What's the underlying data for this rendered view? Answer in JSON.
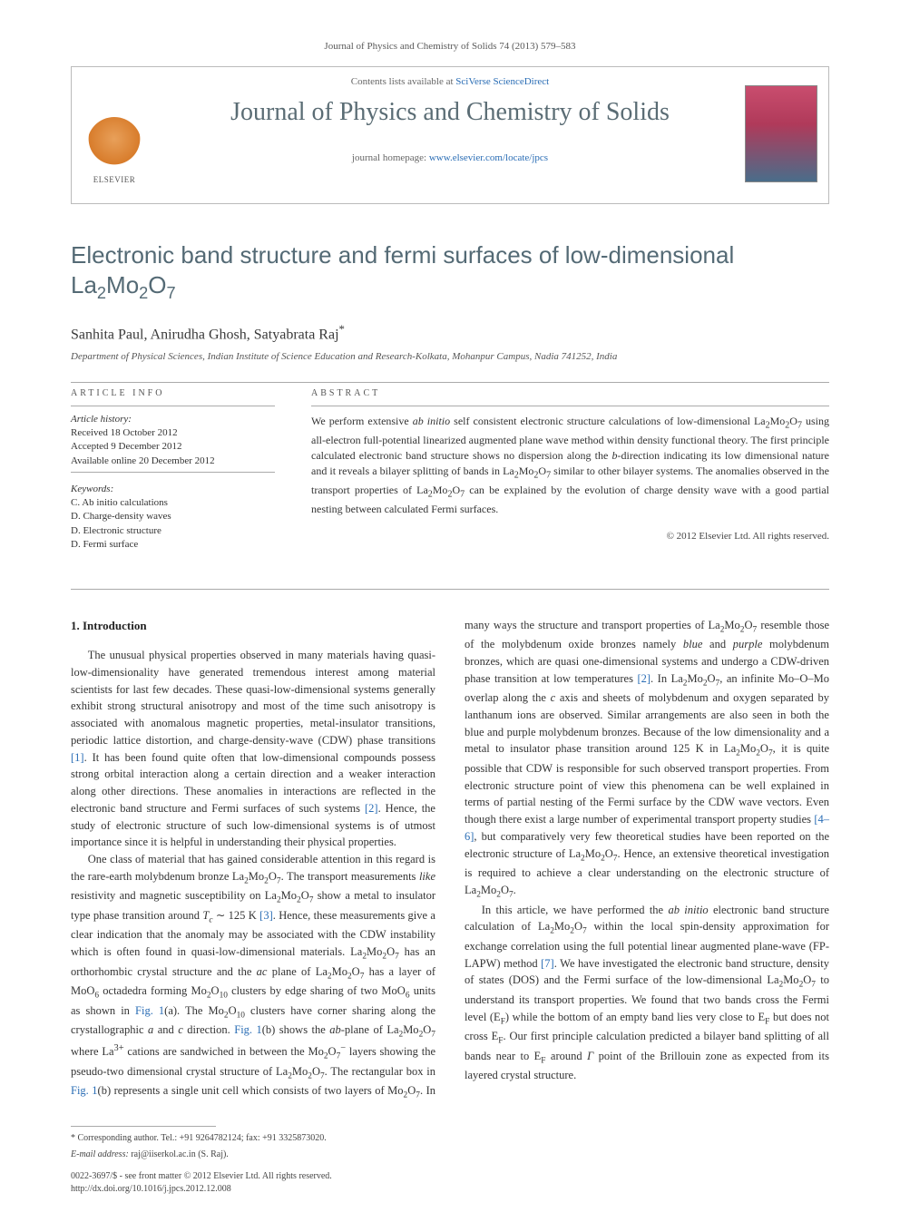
{
  "citation": "Journal of Physics and Chemistry of Solids 74 (2013) 579–583",
  "header": {
    "contents_prefix": "Contents lists available at ",
    "contents_link": "SciVerse ScienceDirect",
    "journal_title": "Journal of Physics and Chemistry of Solids",
    "homepage_prefix": "journal homepage: ",
    "homepage_link": "www.elsevier.com/locate/jpcs",
    "publisher_logo_text": "ELSEVIER"
  },
  "article": {
    "title_html": "Electronic band structure and fermi surfaces of low-dimensional La<sub>2</sub>Mo<sub>2</sub>O<sub>7</sub>",
    "authors": "Sanhita Paul, Anirudha Ghosh, Satyabrata Raj",
    "corr_mark": "*",
    "affiliation": "Department of Physical Sciences, Indian Institute of Science Education and Research-Kolkata, Mohanpur Campus, Nadia 741252, India"
  },
  "info": {
    "section_label": "ARTICLE INFO",
    "history_label": "Article history:",
    "history": [
      "Received 18 October 2012",
      "Accepted 9 December 2012",
      "Available online 20 December 2012"
    ],
    "keywords_label": "Keywords:",
    "keywords": [
      "C. Ab initio calculations",
      "D. Charge-density waves",
      "D. Electronic structure",
      "D. Fermi surface"
    ]
  },
  "abstract": {
    "section_label": "ABSTRACT",
    "text_html": "We perform extensive <i>ab initio</i> self consistent electronic structure calculations of low-dimensional La<sub>2</sub>Mo<sub>2</sub>O<sub>7</sub> using all-electron full-potential linearized augmented plane wave method within density functional theory. The first principle calculated electronic band structure shows no dispersion along the <i>b</i>-direction indicating its low dimensional nature and it reveals a bilayer splitting of bands in La<sub>2</sub>Mo<sub>2</sub>O<sub>7</sub> similar to other bilayer systems. The anomalies observed in the transport properties of La<sub>2</sub>Mo<sub>2</sub>O<sub>7</sub> can be explained by the evolution of charge density wave with a good partial nesting between calculated Fermi surfaces.",
    "copyright": "© 2012 Elsevier Ltd. All rights reserved."
  },
  "body": {
    "heading": "1.  Introduction",
    "para1_html": "The unusual physical properties observed in many materials having quasi-low-dimensionality have generated tremendous interest among material scientists for last few decades. These quasi-low-dimensional systems generally exhibit strong structural anisotropy and most of the time such anisotropy is associated with anomalous magnetic properties, metal-insulator transitions, periodic lattice distortion, and charge-density-wave (CDW) phase transitions <span class=\"ref\">[1]</span>. It has been found quite often that low-dimensional compounds possess strong orbital interaction along a certain direction and a weaker interaction along other directions. These anomalies in interactions are reflected in the electronic band structure and Fermi surfaces of such systems <span class=\"ref\">[2]</span>. Hence, the study of electronic structure of such low-dimensional systems is of utmost importance since it is helpful in understanding their physical properties.",
    "para2_html": "One class of material that has gained considerable attention in this regard is the rare-earth molybdenum bronze La<sub>2</sub>Mo<sub>2</sub>O<sub>7</sub>. The transport measurements <i>like</i> resistivity and magnetic susceptibility on La<sub>2</sub>Mo<sub>2</sub>O<sub>7</sub> show a metal to insulator type phase transition around <i>T<sub>c</sub></i> ∼ 125 K <span class=\"ref\">[3]</span>. Hence, these measurements give a clear indication that the anomaly may be associated with the CDW instability which is often found in quasi-low-dimensional materials. La<sub>2</sub>Mo<sub>2</sub>O<sub>7</sub> has an orthorhombic crystal structure and the <i>ac</i> plane of La<sub>2</sub>Mo<sub>2</sub>O<sub>7</sub> has a layer of MoO<sub>6</sub> octadedra forming Mo<sub>2</sub>O<sub>10</sub> clusters by edge sharing of two MoO<sub>6</sub> units as shown in <span class=\"fig\">Fig. 1</span>(a). The Mo<sub>2</sub>O<sub>10</sub> clusters have corner sharing along the crystallographic <i>a</i> and <i>c</i> direction. <span class=\"fig\">Fig. 1</span>(b) shows the <i>ab</i>-plane of La<sub>2</sub>Mo<sub>2</sub>O<sub>7</sub> where La<sup>3+</sup> cations are sandwiched in between the Mo<sub>2</sub>O<sub>7</sub><sup>−</sup> layers showing the pseudo-two dimensional crystal structure of La<sub>2</sub>Mo<sub>2</sub>O<sub>7</sub>. The rectangular box in <span class=\"fig\">Fig. 1</span>(b) represents a single unit cell which consists of two layers of Mo<sub>2</sub>O<sub>7</sub>. In many ways the structure and transport properties of La<sub>2</sub>Mo<sub>2</sub>O<sub>7</sub> resemble those of the molybdenum oxide bronzes namely <i>blue</i> and <i>purple</i> molybdenum bronzes, which are quasi one-dimensional systems and undergo a CDW-driven phase transition at low temperatures <span class=\"ref\">[2]</span>. In La<sub>2</sub>Mo<sub>2</sub>O<sub>7</sub>, an infinite Mo–O–Mo overlap along the <i>c</i> axis and sheets of molybdenum and oxygen separated by lanthanum ions are observed. Similar arrangements are also seen in both the blue and purple molybdenum bronzes. Because of the low dimensionality and a metal to insulator phase transition around 125 K in La<sub>2</sub>Mo<sub>2</sub>O<sub>7</sub>, it is quite possible that CDW is responsible for such observed transport properties. From electronic structure point of view this phenomena can be well explained in terms of partial nesting of the Fermi surface by the CDW wave vectors. Even though there exist a large number of experimental transport property studies <span class=\"ref\">[4–6]</span>, but comparatively very few theoretical studies have been reported on the electronic structure of La<sub>2</sub>Mo<sub>2</sub>O<sub>7</sub>. Hence, an extensive theoretical investigation is required to achieve a clear understanding on the electronic structure of La<sub>2</sub>Mo<sub>2</sub>O<sub>7</sub>.",
    "para3_html": "In this article, we have performed the <i>ab initio</i> electronic band structure calculation of La<sub>2</sub>Mo<sub>2</sub>O<sub>7</sub> within the local spin-density approximation for exchange correlation using the full potential linear augmented plane-wave (FP-LAPW) method <span class=\"ref\">[7]</span>. We have investigated the electronic band structure, density of states (DOS) and the Fermi surface of the low-dimensional La<sub>2</sub>Mo<sub>2</sub>O<sub>7</sub> to understand its transport properties. We found that two bands cross the Fermi level (E<sub>F</sub>) while the bottom of an empty band lies very close to E<sub>F</sub> but does not cross E<sub>F</sub>. Our first principle calculation predicted a bilayer band splitting of all bands near to E<sub>F</sub> around <i>Γ</i> point of the Brillouin zone as expected from its layered crystal structure."
  },
  "footnote": {
    "corr_text": "Corresponding author. Tel.: +91 9264782124; fax: +91 3325873020.",
    "email_label": "E-mail address:",
    "email_value": "raj@iiserkol.ac.in (S. Raj).",
    "issn_line": "0022-3697/$ - see front matter © 2012 Elsevier Ltd. All rights reserved.",
    "doi_line": "http://dx.doi.org/10.1016/j.jpcs.2012.12.008"
  },
  "colors": {
    "link": "#2a6db5",
    "heading": "#546a75",
    "text": "#333333",
    "rule": "#aaaaaa"
  }
}
